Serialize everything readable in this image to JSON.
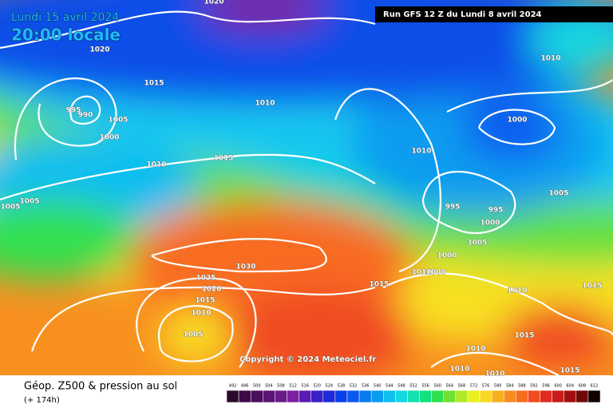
{
  "header": {
    "date": "Lundi 15 avril 2024",
    "time": "20:00 locale",
    "run": "Run GFS 12 Z du Lundi 8 avril 2024"
  },
  "copyright": "Copyright © 2024 Meteociel.fr",
  "footer": {
    "title": "Géop. Z500 & pression au sol",
    "lead": "(+ 174h)"
  },
  "legend": {
    "values": [
      492,
      496,
      500,
      504,
      508,
      512,
      516,
      520,
      524,
      528,
      532,
      536,
      540,
      544,
      548,
      552,
      556,
      560,
      564,
      568,
      572,
      576,
      580,
      584,
      588,
      592,
      596,
      600,
      604,
      608,
      612
    ],
    "colors": [
      "#2a0a2a",
      "#3d0a45",
      "#4c0e5e",
      "#5a1475",
      "#6b1a8c",
      "#7a20a0",
      "#5a1ab4",
      "#3a1ec8",
      "#1e2ad8",
      "#0a3ee8",
      "#0a5af0",
      "#0a7af0",
      "#0a9cf0",
      "#10bef0",
      "#14d8e0",
      "#14e0b0",
      "#14e080",
      "#30e050",
      "#70e030",
      "#b0e828",
      "#e8f020",
      "#f8d820",
      "#f8b020",
      "#f88c20",
      "#f86c20",
      "#f04c20",
      "#e02c20",
      "#c81c1c",
      "#a01010",
      "#700808",
      "#100000"
    ]
  },
  "isobars": {
    "labels": [
      1020,
      1020,
      1015,
      1010,
      995,
      990,
      1005,
      1000,
      1010,
      1015,
      1005,
      1005,
      1030,
      1025,
      1020,
      1015,
      1010,
      1005,
      1010,
      1000,
      1010,
      1005,
      995,
      995,
      1000,
      1005,
      1000,
      1015,
      1010,
      1000,
      1010,
      1015,
      1015,
      1010,
      1010,
      1010,
      1015
    ]
  }
}
